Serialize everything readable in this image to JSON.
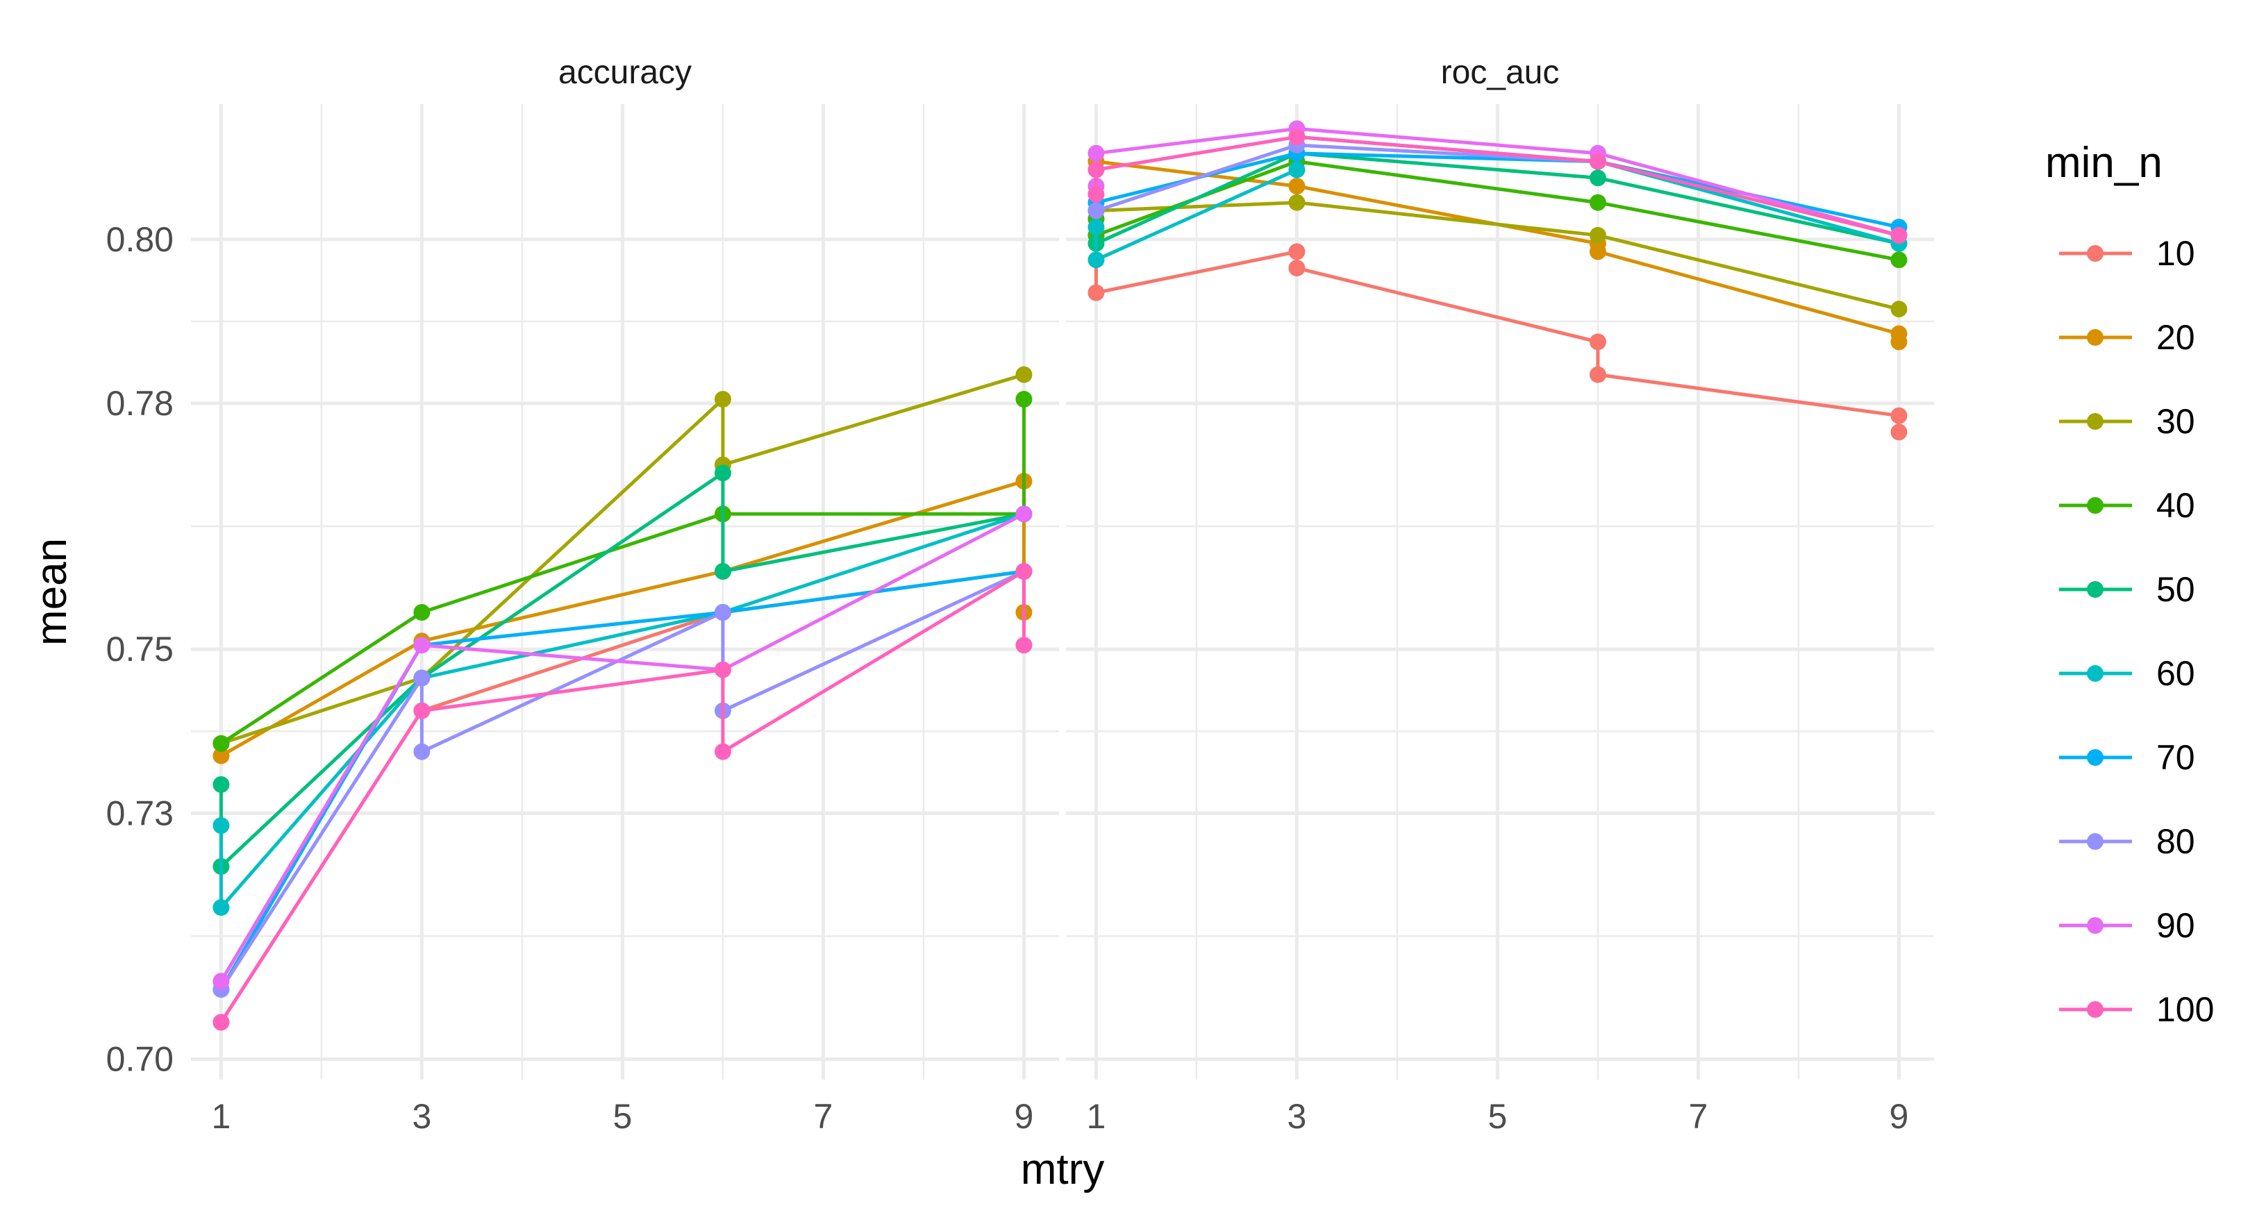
{
  "chart_data": {
    "type": "line",
    "x_variable": "mtry",
    "xlabel": "mtry",
    "ylabel": "mean",
    "x_ticks": [
      1,
      3,
      5,
      7,
      9
    ],
    "y_ticks": [
      0.7,
      0.73,
      0.75,
      0.78,
      0.8
    ],
    "y_tick_labels": [
      "0.70",
      "0.73",
      "0.75",
      "0.78",
      "0.80"
    ],
    "xlim": [
      0.7,
      9.35
    ],
    "ylim": [
      0.6975,
      0.8165
    ],
    "grid": true,
    "legend": {
      "title": "min_n",
      "position": "right",
      "entries": [
        "10",
        "20",
        "30",
        "40",
        "50",
        "60",
        "70",
        "80",
        "90",
        "100"
      ],
      "colors": [
        "#F8766D",
        "#D89000",
        "#A3A500",
        "#39B600",
        "#00BF7D",
        "#00BFC4",
        "#00B0F6",
        "#9590FF",
        "#E76BF3",
        "#FF62BC"
      ]
    },
    "facets": [
      {
        "label": "accuracy",
        "series": [
          {
            "name": "10",
            "points": [
              [
                1,
                0.7045
              ],
              [
                3,
                0.7425
              ],
              [
                6,
                0.7545
              ],
              [
                9,
                0.7595
              ]
            ]
          },
          {
            "name": "20",
            "points": [
              [
                1,
                0.7385
              ],
              [
                1,
                0.737
              ],
              [
                3,
                0.751
              ],
              [
                6,
                0.7595
              ],
              [
                9,
                0.7705
              ],
              [
                9,
                0.7545
              ]
            ]
          },
          {
            "name": "30",
            "points": [
              [
                1,
                0.7385
              ],
              [
                3,
                0.7465
              ],
              [
                6,
                0.7805
              ],
              [
                6,
                0.7725
              ],
              [
                9,
                0.7835
              ]
            ]
          },
          {
            "name": "40",
            "points": [
              [
                1,
                0.7385
              ],
              [
                3,
                0.7545
              ],
              [
                6,
                0.7665
              ],
              [
                9,
                0.7665
              ],
              [
                9,
                0.7805
              ]
            ]
          },
          {
            "name": "50",
            "points": [
              [
                1,
                0.7335
              ],
              [
                1,
                0.7235
              ],
              [
                3,
                0.7465
              ],
              [
                6,
                0.7715
              ],
              [
                6,
                0.7595
              ],
              [
                9,
                0.7665
              ]
            ]
          },
          {
            "name": "60",
            "points": [
              [
                1,
                0.7285
              ],
              [
                1,
                0.7185
              ],
              [
                3,
                0.7465
              ],
              [
                6,
                0.7545
              ],
              [
                9,
                0.7665
              ]
            ]
          },
          {
            "name": "70",
            "points": [
              [
                1,
                0.7085
              ],
              [
                3,
                0.7505
              ],
              [
                6,
                0.7545
              ],
              [
                9,
                0.7595
              ]
            ]
          },
          {
            "name": "80",
            "points": [
              [
                1,
                0.7085
              ],
              [
                3,
                0.7465
              ],
              [
                3,
                0.7375
              ],
              [
                6,
                0.7545
              ],
              [
                6,
                0.7425
              ],
              [
                9,
                0.7595
              ]
            ]
          },
          {
            "name": "90",
            "points": [
              [
                1,
                0.7095
              ],
              [
                3,
                0.7505
              ],
              [
                6,
                0.7475
              ],
              [
                9,
                0.7665
              ]
            ]
          },
          {
            "name": "100",
            "points": [
              [
                1,
                0.7045
              ],
              [
                3,
                0.7425
              ],
              [
                6,
                0.7475
              ],
              [
                6,
                0.7375
              ],
              [
                9,
                0.7595
              ],
              [
                9,
                0.7505
              ]
            ]
          }
        ]
      },
      {
        "label": "roc_auc",
        "series": [
          {
            "name": "10",
            "points": [
              [
                1,
                0.8005
              ],
              [
                1,
                0.7935
              ],
              [
                3,
                0.7985
              ],
              [
                3,
                0.7965
              ],
              [
                6,
                0.7875
              ],
              [
                6,
                0.7835
              ],
              [
                9,
                0.7785
              ],
              [
                9,
                0.7765
              ]
            ]
          },
          {
            "name": "20",
            "points": [
              [
                1,
                0.8025
              ],
              [
                1,
                0.8095
              ],
              [
                3,
                0.8065
              ],
              [
                6,
                0.7995
              ],
              [
                6,
                0.7985
              ],
              [
                9,
                0.7885
              ],
              [
                9,
                0.7875
              ]
            ]
          },
          {
            "name": "30",
            "points": [
              [
                1,
                0.8035
              ],
              [
                3,
                0.8045
              ],
              [
                6,
                0.8005
              ],
              [
                9,
                0.7915
              ]
            ]
          },
          {
            "name": "40",
            "points": [
              [
                1,
                0.8025
              ],
              [
                1,
                0.8005
              ],
              [
                3,
                0.8095
              ],
              [
                6,
                0.8045
              ],
              [
                9,
                0.7975
              ]
            ]
          },
          {
            "name": "50",
            "points": [
              [
                1,
                0.7995
              ],
              [
                3,
                0.8105
              ],
              [
                6,
                0.8075
              ],
              [
                9,
                0.7995
              ]
            ]
          },
          {
            "name": "60",
            "points": [
              [
                1,
                0.8015
              ],
              [
                1,
                0.7975
              ],
              [
                3,
                0.8085
              ],
              [
                3,
                0.8125
              ],
              [
                6,
                0.8095
              ],
              [
                9,
                0.7995
              ]
            ]
          },
          {
            "name": "70",
            "points": [
              [
                1,
                0.8045
              ],
              [
                3,
                0.8105
              ],
              [
                6,
                0.8095
              ],
              [
                9,
                0.8015
              ]
            ]
          },
          {
            "name": "80",
            "points": [
              [
                1,
                0.8035
              ],
              [
                3,
                0.8115
              ],
              [
                6,
                0.8095
              ],
              [
                9,
                0.8005
              ]
            ]
          },
          {
            "name": "90",
            "points": [
              [
                1,
                0.8065
              ],
              [
                1,
                0.8105
              ],
              [
                3,
                0.8135
              ],
              [
                6,
                0.8105
              ],
              [
                9,
                0.8005
              ]
            ]
          },
          {
            "name": "100",
            "points": [
              [
                1,
                0.8055
              ],
              [
                1,
                0.8085
              ],
              [
                3,
                0.8125
              ],
              [
                6,
                0.8095
              ],
              [
                9,
                0.8005
              ]
            ]
          }
        ]
      }
    ]
  }
}
